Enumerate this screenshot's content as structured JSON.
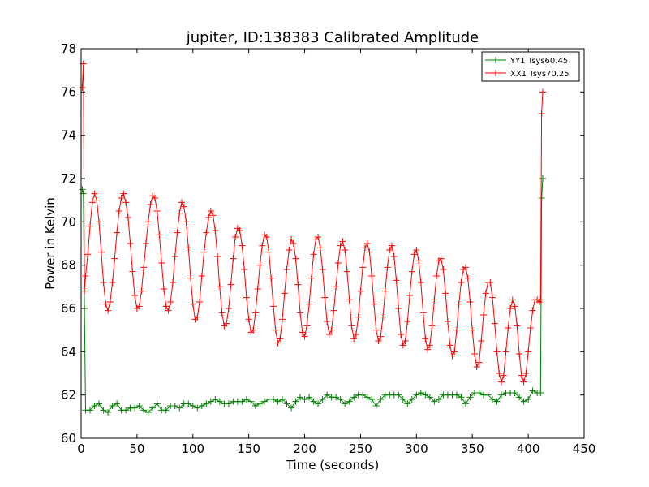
{
  "chart_data": {
    "type": "line",
    "title": "jupiter, ID:138383 Calibrated Amplitude",
    "xlabel": "Time (seconds)",
    "ylabel": "Power in Kelvin",
    "xlim": [
      0,
      450
    ],
    "ylim": [
      60,
      78
    ],
    "xticks": [
      "0",
      "50",
      "100",
      "150",
      "200",
      "250",
      "300",
      "350",
      "400",
      "450"
    ],
    "yticks": [
      "60",
      "62",
      "64",
      "66",
      "68",
      "70",
      "72",
      "74",
      "76",
      "78"
    ],
    "grid": false,
    "legend_position": "top-right",
    "marker": "plus",
    "series": [
      {
        "name": "YY1 Tsys60.45",
        "color": "#008000",
        "points": [
          [
            1,
            71.5
          ],
          [
            2,
            71.3
          ],
          [
            3,
            66.0
          ],
          [
            4,
            61.3
          ],
          [
            8,
            61.3
          ],
          [
            12,
            61.5
          ],
          [
            16,
            61.6
          ],
          [
            20,
            61.3
          ],
          [
            24,
            61.2
          ],
          [
            28,
            61.5
          ],
          [
            32,
            61.6
          ],
          [
            36,
            61.3
          ],
          [
            40,
            61.3
          ],
          [
            44,
            61.4
          ],
          [
            48,
            61.4
          ],
          [
            52,
            61.5
          ],
          [
            56,
            61.3
          ],
          [
            60,
            61.2
          ],
          [
            64,
            61.4
          ],
          [
            68,
            61.6
          ],
          [
            72,
            61.3
          ],
          [
            76,
            61.3
          ],
          [
            80,
            61.5
          ],
          [
            84,
            61.5
          ],
          [
            88,
            61.4
          ],
          [
            92,
            61.6
          ],
          [
            96,
            61.6
          ],
          [
            100,
            61.5
          ],
          [
            104,
            61.4
          ],
          [
            108,
            61.5
          ],
          [
            112,
            61.6
          ],
          [
            116,
            61.7
          ],
          [
            120,
            61.8
          ],
          [
            124,
            61.7
          ],
          [
            128,
            61.6
          ],
          [
            132,
            61.6
          ],
          [
            136,
            61.7
          ],
          [
            140,
            61.7
          ],
          [
            144,
            61.7
          ],
          [
            148,
            61.8
          ],
          [
            152,
            61.7
          ],
          [
            156,
            61.5
          ],
          [
            160,
            61.6
          ],
          [
            164,
            61.7
          ],
          [
            168,
            61.8
          ],
          [
            172,
            61.8
          ],
          [
            176,
            61.7
          ],
          [
            180,
            61.8
          ],
          [
            184,
            61.6
          ],
          [
            188,
            61.4
          ],
          [
            192,
            61.7
          ],
          [
            196,
            61.9
          ],
          [
            200,
            61.8
          ],
          [
            204,
            61.9
          ],
          [
            208,
            61.7
          ],
          [
            212,
            61.6
          ],
          [
            216,
            61.8
          ],
          [
            220,
            62.0
          ],
          [
            224,
            61.9
          ],
          [
            228,
            61.9
          ],
          [
            232,
            61.8
          ],
          [
            236,
            61.6
          ],
          [
            240,
            61.7
          ],
          [
            244,
            61.9
          ],
          [
            248,
            62.0
          ],
          [
            252,
            62.0
          ],
          [
            256,
            61.9
          ],
          [
            260,
            61.8
          ],
          [
            264,
            61.5
          ],
          [
            268,
            61.8
          ],
          [
            272,
            62.0
          ],
          [
            276,
            62.0
          ],
          [
            280,
            62.0
          ],
          [
            284,
            62.0
          ],
          [
            288,
            61.8
          ],
          [
            292,
            61.6
          ],
          [
            296,
            61.8
          ],
          [
            300,
            62.0
          ],
          [
            304,
            62.1
          ],
          [
            308,
            62.0
          ],
          [
            312,
            61.9
          ],
          [
            316,
            61.7
          ],
          [
            320,
            61.8
          ],
          [
            324,
            62.0
          ],
          [
            328,
            62.0
          ],
          [
            332,
            62.0
          ],
          [
            336,
            62.0
          ],
          [
            340,
            61.9
          ],
          [
            344,
            61.6
          ],
          [
            348,
            61.9
          ],
          [
            352,
            62.1
          ],
          [
            356,
            62.1
          ],
          [
            360,
            62.0
          ],
          [
            364,
            62.0
          ],
          [
            368,
            61.8
          ],
          [
            372,
            61.7
          ],
          [
            376,
            62.0
          ],
          [
            380,
            62.1
          ],
          [
            384,
            62.1
          ],
          [
            388,
            62.1
          ],
          [
            392,
            61.9
          ],
          [
            396,
            61.7
          ],
          [
            400,
            61.8
          ],
          [
            404,
            62.2
          ],
          [
            408,
            62.1
          ],
          [
            411,
            62.1
          ],
          [
            412,
            71.1
          ],
          [
            413,
            72.0
          ]
        ]
      },
      {
        "name": "XX1 Tsys70.25",
        "color": "#ff0000",
        "points": [
          [
            1,
            76.2
          ],
          [
            2,
            77.3
          ],
          [
            3,
            66.8
          ],
          [
            4,
            67.5
          ],
          [
            6,
            68.5
          ],
          [
            8,
            69.8
          ],
          [
            10,
            70.9
          ],
          [
            12,
            71.3
          ],
          [
            14,
            71.0
          ],
          [
            16,
            70.0
          ],
          [
            18,
            68.6
          ],
          [
            20,
            67.2
          ],
          [
            22,
            66.2
          ],
          [
            24,
            65.9
          ],
          [
            26,
            66.3
          ],
          [
            28,
            67.2
          ],
          [
            30,
            68.3
          ],
          [
            32,
            69.5
          ],
          [
            34,
            70.5
          ],
          [
            36,
            71.1
          ],
          [
            38,
            71.3
          ],
          [
            40,
            70.9
          ],
          [
            42,
            70.2
          ],
          [
            44,
            69.0
          ],
          [
            46,
            67.7
          ],
          [
            48,
            66.6
          ],
          [
            50,
            66.0
          ],
          [
            52,
            66.1
          ],
          [
            54,
            66.8
          ],
          [
            56,
            67.9
          ],
          [
            58,
            69.0
          ],
          [
            60,
            70.0
          ],
          [
            62,
            70.8
          ],
          [
            64,
            71.2
          ],
          [
            66,
            71.1
          ],
          [
            68,
            70.5
          ],
          [
            70,
            69.4
          ],
          [
            72,
            68.1
          ],
          [
            74,
            66.9
          ],
          [
            76,
            66.1
          ],
          [
            78,
            65.9
          ],
          [
            80,
            66.3
          ],
          [
            82,
            67.2
          ],
          [
            84,
            68.4
          ],
          [
            86,
            69.5
          ],
          [
            88,
            70.4
          ],
          [
            90,
            70.9
          ],
          [
            92,
            70.7
          ],
          [
            94,
            70.0
          ],
          [
            96,
            68.8
          ],
          [
            98,
            67.4
          ],
          [
            100,
            66.2
          ],
          [
            102,
            65.5
          ],
          [
            104,
            65.6
          ],
          [
            106,
            66.3
          ],
          [
            108,
            67.5
          ],
          [
            110,
            68.6
          ],
          [
            112,
            69.5
          ],
          [
            114,
            70.2
          ],
          [
            116,
            70.5
          ],
          [
            118,
            70.3
          ],
          [
            120,
            69.6
          ],
          [
            122,
            68.4
          ],
          [
            124,
            67.0
          ],
          [
            126,
            65.8
          ],
          [
            128,
            65.2
          ],
          [
            130,
            65.3
          ],
          [
            132,
            66.0
          ],
          [
            134,
            67.1
          ],
          [
            136,
            68.3
          ],
          [
            138,
            69.3
          ],
          [
            140,
            69.7
          ],
          [
            142,
            69.6
          ],
          [
            144,
            68.9
          ],
          [
            146,
            67.8
          ],
          [
            148,
            66.5
          ],
          [
            150,
            65.5
          ],
          [
            152,
            64.9
          ],
          [
            154,
            65.0
          ],
          [
            156,
            65.8
          ],
          [
            158,
            66.9
          ],
          [
            160,
            68.0
          ],
          [
            162,
            68.9
          ],
          [
            164,
            69.4
          ],
          [
            166,
            69.3
          ],
          [
            168,
            68.6
          ],
          [
            170,
            67.4
          ],
          [
            172,
            66.1
          ],
          [
            174,
            65.0
          ],
          [
            176,
            64.4
          ],
          [
            178,
            64.6
          ],
          [
            180,
            65.5
          ],
          [
            182,
            66.7
          ],
          [
            184,
            67.8
          ],
          [
            186,
            68.7
          ],
          [
            188,
            69.2
          ],
          [
            190,
            69.0
          ],
          [
            192,
            68.3
          ],
          [
            194,
            67.1
          ],
          [
            196,
            65.8
          ],
          [
            198,
            64.9
          ],
          [
            200,
            64.7
          ],
          [
            202,
            65.2
          ],
          [
            204,
            66.2
          ],
          [
            206,
            67.4
          ],
          [
            208,
            68.5
          ],
          [
            210,
            69.2
          ],
          [
            212,
            69.3
          ],
          [
            214,
            68.8
          ],
          [
            216,
            67.8
          ],
          [
            218,
            66.5
          ],
          [
            220,
            65.4
          ],
          [
            222,
            64.8
          ],
          [
            224,
            65.0
          ],
          [
            226,
            65.9
          ],
          [
            228,
            67.0
          ],
          [
            230,
            68.1
          ],
          [
            232,
            68.9
          ],
          [
            234,
            69.1
          ],
          [
            236,
            68.7
          ],
          [
            238,
            67.7
          ],
          [
            240,
            66.4
          ],
          [
            242,
            65.2
          ],
          [
            244,
            64.6
          ],
          [
            246,
            64.8
          ],
          [
            248,
            65.6
          ],
          [
            250,
            66.8
          ],
          [
            252,
            67.9
          ],
          [
            254,
            68.8
          ],
          [
            256,
            69.0
          ],
          [
            258,
            68.6
          ],
          [
            260,
            67.5
          ],
          [
            262,
            66.2
          ],
          [
            264,
            65.0
          ],
          [
            266,
            64.5
          ],
          [
            268,
            64.7
          ],
          [
            270,
            65.6
          ],
          [
            272,
            66.8
          ],
          [
            274,
            67.9
          ],
          [
            276,
            68.7
          ],
          [
            278,
            68.9
          ],
          [
            280,
            68.4
          ],
          [
            282,
            67.3
          ],
          [
            284,
            66.0
          ],
          [
            286,
            64.8
          ],
          [
            288,
            64.3
          ],
          [
            290,
            64.5
          ],
          [
            292,
            65.4
          ],
          [
            294,
            66.6
          ],
          [
            296,
            67.7
          ],
          [
            298,
            68.5
          ],
          [
            300,
            68.7
          ],
          [
            302,
            68.2
          ],
          [
            304,
            67.2
          ],
          [
            306,
            65.8
          ],
          [
            308,
            64.6
          ],
          [
            310,
            64.1
          ],
          [
            312,
            64.3
          ],
          [
            314,
            65.2
          ],
          [
            316,
            66.4
          ],
          [
            318,
            67.5
          ],
          [
            320,
            68.2
          ],
          [
            322,
            68.3
          ],
          [
            324,
            67.8
          ],
          [
            326,
            66.7
          ],
          [
            328,
            65.4
          ],
          [
            330,
            64.3
          ],
          [
            332,
            63.8
          ],
          [
            334,
            64.0
          ],
          [
            336,
            65.0
          ],
          [
            338,
            66.2
          ],
          [
            340,
            67.2
          ],
          [
            342,
            67.8
          ],
          [
            344,
            67.9
          ],
          [
            346,
            67.4
          ],
          [
            348,
            66.3
          ],
          [
            350,
            65.0
          ],
          [
            352,
            63.9
          ],
          [
            354,
            63.3
          ],
          [
            356,
            63.5
          ],
          [
            358,
            64.5
          ],
          [
            360,
            65.7
          ],
          [
            362,
            66.7
          ],
          [
            364,
            67.2
          ],
          [
            366,
            67.2
          ],
          [
            368,
            66.5
          ],
          [
            370,
            65.3
          ],
          [
            372,
            64.0
          ],
          [
            374,
            63.0
          ],
          [
            376,
            62.6
          ],
          [
            378,
            62.9
          ],
          [
            380,
            64.0
          ],
          [
            382,
            65.1
          ],
          [
            384,
            66.0
          ],
          [
            386,
            66.4
          ],
          [
            388,
            66.1
          ],
          [
            390,
            65.2
          ],
          [
            392,
            63.9
          ],
          [
            394,
            62.9
          ],
          [
            396,
            62.6
          ],
          [
            398,
            63.0
          ],
          [
            400,
            64.0
          ],
          [
            402,
            65.1
          ],
          [
            404,
            65.9
          ],
          [
            406,
            66.4
          ],
          [
            408,
            66.4
          ],
          [
            410,
            66.3
          ],
          [
            411,
            66.4
          ],
          [
            412,
            75.0
          ],
          [
            413,
            76.0
          ]
        ]
      }
    ]
  }
}
